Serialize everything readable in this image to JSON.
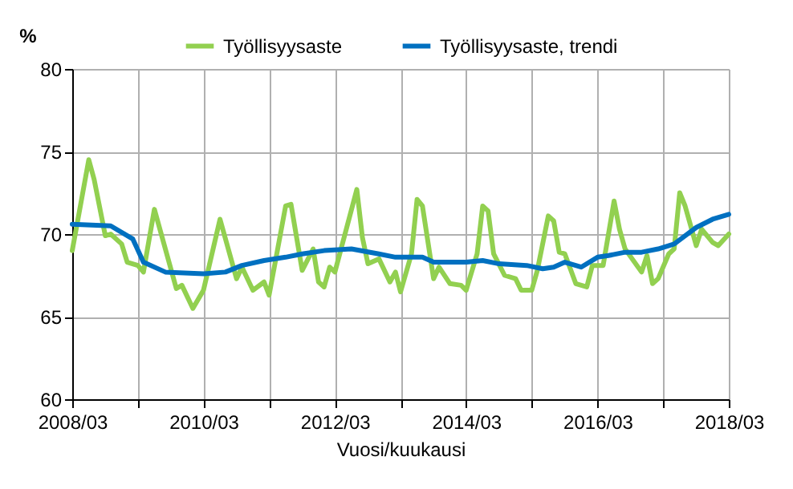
{
  "chart_data": {
    "type": "line",
    "ylabel": "%",
    "xlabel": "Vuosi/kuukausi",
    "legend": "top",
    "grid": true,
    "xlim": [
      "2008-03",
      "2018-03"
    ],
    "xticks": [
      {
        "value": "2008-03",
        "label": "2008/03"
      },
      {
        "value": "2009-03",
        "label": null
      },
      {
        "value": "2010-03",
        "label": "2010/03"
      },
      {
        "value": "2011-03",
        "label": null
      },
      {
        "value": "2012-03",
        "label": "2012/03"
      },
      {
        "value": "2013-03",
        "label": null
      },
      {
        "value": "2014-03",
        "label": "2014/03"
      },
      {
        "value": "2015-03",
        "label": null
      },
      {
        "value": "2016-03",
        "label": "2016/03"
      },
      {
        "value": "2017-03",
        "label": null
      },
      {
        "value": "2018-03",
        "label": "2018/03"
      }
    ],
    "ylim": [
      60,
      80
    ],
    "yticks": [
      60,
      65,
      70,
      75,
      80
    ],
    "series": [
      {
        "name": "Työllisyysaste",
        "color": "#92d050",
        "x": [
          "2008-03",
          "2008-06",
          "2008-07",
          "2008-09",
          "2008-10",
          "2008-12",
          "2009-01",
          "2009-03",
          "2009-04",
          "2009-06",
          "2009-10",
          "2009-11",
          "2010-01",
          "2010-03",
          "2010-06",
          "2010-09",
          "2010-10",
          "2010-12",
          "2011-02",
          "2011-03",
          "2011-06",
          "2011-07",
          "2011-09",
          "2011-11",
          "2011-12",
          "2012-01",
          "2012-02",
          "2012-03",
          "2012-07",
          "2012-08",
          "2012-09",
          "2012-11",
          "2013-01",
          "2013-02",
          "2013-03",
          "2013-05",
          "2013-06",
          "2013-07",
          "2013-09",
          "2013-10",
          "2013-12",
          "2014-02",
          "2014-03",
          "2014-05",
          "2014-06",
          "2014-07",
          "2014-08",
          "2014-10",
          "2014-12",
          "2015-01",
          "2015-03",
          "2015-04",
          "2015-06",
          "2015-07",
          "2015-08",
          "2015-09",
          "2015-11",
          "2016-01",
          "2016-02",
          "2016-04",
          "2016-06",
          "2016-07",
          "2016-08",
          "2016-11",
          "2016-12",
          "2017-01",
          "2017-02",
          "2017-04",
          "2017-05",
          "2017-06",
          "2017-07",
          "2017-09",
          "2017-10",
          "2017-12",
          "2018-01",
          "2018-03"
        ],
        "values": [
          69.0,
          74.5,
          73.3,
          69.9,
          70.0,
          69.4,
          68.3,
          68.1,
          67.7,
          71.5,
          66.7,
          66.9,
          65.5,
          66.6,
          70.9,
          67.3,
          68.0,
          66.6,
          67.1,
          66.3,
          71.7,
          71.8,
          67.8,
          69.1,
          67.1,
          66.8,
          68.0,
          67.7,
          72.7,
          69.8,
          68.2,
          68.5,
          67.1,
          67.7,
          66.5,
          68.8,
          72.1,
          71.7,
          67.3,
          68.0,
          67.0,
          66.9,
          66.6,
          68.8,
          71.7,
          71.4,
          68.8,
          67.5,
          67.3,
          66.6,
          66.6,
          67.8,
          71.1,
          70.8,
          68.9,
          68.8,
          67.0,
          66.8,
          68.1,
          68.1,
          72.0,
          70.3,
          69.1,
          67.7,
          68.7,
          67.0,
          67.3,
          68.8,
          69.1,
          72.5,
          71.7,
          69.3,
          70.3,
          69.5,
          69.3,
          70.0
        ]
      },
      {
        "name": "Työllisyysaste, trendi",
        "color": "#0070c0",
        "x": [
          "2008-03",
          "2008-10",
          "2009-02",
          "2009-04",
          "2009-08",
          "2010-03",
          "2010-07",
          "2010-10",
          "2011-02",
          "2011-06",
          "2011-09",
          "2012-01",
          "2012-06",
          "2012-11",
          "2013-02",
          "2013-07",
          "2013-09",
          "2014-03",
          "2014-06",
          "2014-09",
          "2015-02",
          "2015-05",
          "2015-07",
          "2015-09",
          "2015-12",
          "2016-03",
          "2016-05",
          "2016-08",
          "2016-11",
          "2017-02",
          "2017-05",
          "2017-07",
          "2017-09",
          "2017-12",
          "2018-03"
        ],
        "values": [
          70.6,
          70.5,
          69.7,
          68.3,
          67.7,
          67.6,
          67.7,
          68.1,
          68.4,
          68.6,
          68.8,
          69.0,
          69.1,
          68.8,
          68.6,
          68.6,
          68.3,
          68.3,
          68.4,
          68.2,
          68.1,
          67.9,
          68.0,
          68.3,
          68.0,
          68.6,
          68.7,
          68.9,
          68.9,
          69.1,
          69.4,
          69.9,
          70.4,
          70.9,
          71.2
        ]
      }
    ]
  }
}
